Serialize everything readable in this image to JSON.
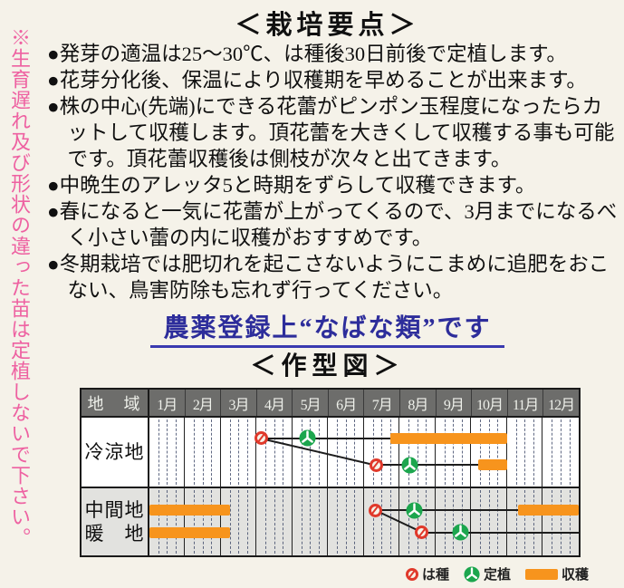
{
  "vertical_note": "※生育遅れ及び形状の違った苗は定植しないで下さい。",
  "title": "＜栽培要点＞",
  "key_points": {
    "items": [
      "●発芽の適温は25～30℃、は種後30日前後で定植します。",
      "●花芽分化後、保温により収穫期を早めることが出来ます。",
      "●株の中心(先端)にできる花蕾がピンポン玉程度になったらカットして収穫します。頂花蕾を大きくして収穫する事も可能です。頂花蕾収穫後は側枝が次々と出てきます。",
      "●中晩生のアレッタ5と時期をずらして収穫できます。",
      "●春になると一気に花蕾が上がってくるので、3月までになるべく小さい蕾の内に収穫がおすすめです。",
      "●冬期栽培では肥切れを起こさないようにこまめに追肥をおこない、鳥害防除も忘れず行ってください。"
    ]
  },
  "pesticide_note": "農薬登録上“なばな類”です",
  "chart_heading": "＜作型図＞",
  "chart_data": {
    "type": "timeline",
    "title": "作型図 (cropping calendar)",
    "header": {
      "region_col": "地　域",
      "months": [
        "1月",
        "2月",
        "3月",
        "4月",
        "5月",
        "6月",
        "7月",
        "8月",
        "9月",
        "10月",
        "11月",
        "12月"
      ]
    },
    "scale": {
      "unit": "month",
      "min": 0,
      "max": 12,
      "dashed_subdivisions_per_month": 4
    },
    "groups": [
      {
        "region_labels": [
          "冷涼地"
        ],
        "bg": "#ffffff",
        "lines": [
          {
            "sow_month": 3.12,
            "plant_month": 4.43,
            "track": [
              3.12,
              6.74
            ],
            "harvest_bars": [
              [
                6.74,
                10.0
              ]
            ],
            "y_frac": 0.3
          },
          {
            "sow_month": 6.34,
            "plant_month": 7.27,
            "track": [
              6.34,
              9.18
            ],
            "harvest_bars": [
              [
                9.18,
                10.0
              ]
            ],
            "y_frac": 0.69
          }
        ],
        "connector_between_sowings": true
      },
      {
        "region_labels": [
          "中間地",
          "暖　地"
        ],
        "bg": "#e2e2df",
        "lines": [
          {
            "sow_month": 6.31,
            "plant_month": 7.4,
            "track": [
              6.31,
              10.3
            ],
            "harvest_bars": [
              [
                0,
                2.26
              ],
              [
                10.3,
                12
              ]
            ],
            "y_frac": 0.33
          },
          {
            "sow_month": 7.62,
            "plant_month": 8.7,
            "track": [
              7.62,
              12
            ],
            "harvest_bars": [
              [
                0,
                2.26
              ]
            ],
            "y_frac": 0.66
          }
        ],
        "connector_between_sowings": true
      }
    ],
    "legend": [
      {
        "icon": "sowing-icon",
        "label": "は種"
      },
      {
        "icon": "transplant-icon",
        "label": "定植"
      },
      {
        "icon": "harvest-icon",
        "label": "収穫"
      }
    ],
    "colors": {
      "harvest_bar": "#f7941d",
      "sowing_ring": "#e0392b",
      "transplant_green": "#1ca64e",
      "header_bg": "#6d6d6b",
      "header_text": "#eef0ea",
      "group2_bg": "#e2e2df",
      "grid_dash": "#45506e",
      "track_line": "#1d1d1d",
      "note_pink": "#ee61a1",
      "note_blue": "#2d2d9b"
    }
  }
}
